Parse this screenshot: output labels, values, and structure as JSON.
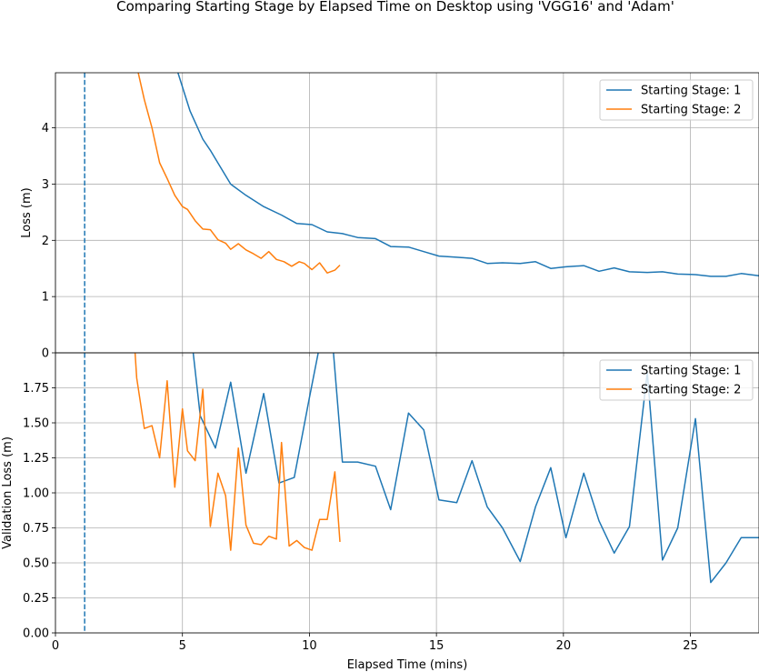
{
  "title": "Comparing Starting Stage by Elapsed Time on Desktop using 'VGG16' and 'Adam'",
  "colors": {
    "stage1": "#1f77b4",
    "stage2": "#ff7f0e",
    "grid": "#b0b0b0",
    "vline": "#1f77b4"
  },
  "chart_data": [
    {
      "type": "line",
      "xlabel": "",
      "ylabel": "Loss (m)",
      "xlim": [
        0,
        27.7
      ],
      "ylim": [
        0,
        4.98
      ],
      "yticks": [
        0,
        1,
        2,
        3,
        4
      ],
      "xticks": [],
      "grid": true,
      "legend": "upper right",
      "vline": 1.15,
      "series": [
        {
          "name": "Starting Stage: 1",
          "x": [
            4.6,
            5.3,
            5.8,
            6.1,
            6.3,
            6.9,
            7.5,
            8.2,
            8.9,
            9.5,
            10.1,
            10.7,
            11.3,
            11.9,
            12.6,
            13.2,
            13.9,
            14.5,
            15.1,
            15.8,
            16.4,
            17.0,
            17.6,
            18.3,
            18.9,
            19.5,
            20.1,
            20.8,
            21.4,
            22.0,
            22.6,
            23.3,
            23.9,
            24.5,
            25.2,
            25.8,
            26.4,
            27.0,
            27.7
          ],
          "y": [
            5.3,
            4.3,
            3.8,
            3.6,
            3.45,
            3.0,
            2.8,
            2.6,
            2.45,
            2.3,
            2.28,
            2.15,
            2.12,
            2.05,
            2.03,
            1.89,
            1.88,
            1.8,
            1.72,
            1.7,
            1.68,
            1.59,
            1.6,
            1.59,
            1.62,
            1.5,
            1.53,
            1.55,
            1.45,
            1.51,
            1.44,
            1.43,
            1.44,
            1.4,
            1.39,
            1.36,
            1.36,
            1.41,
            1.37
          ]
        },
        {
          "name": "Starting Stage: 2",
          "x": [
            3.2,
            3.5,
            3.8,
            4.1,
            4.4,
            4.7,
            5.0,
            5.2,
            5.5,
            5.8,
            6.1,
            6.4,
            6.7,
            6.9,
            7.2,
            7.5,
            7.8,
            8.1,
            8.4,
            8.7,
            9.0,
            9.3,
            9.6,
            9.8,
            10.1,
            10.4,
            10.7,
            11.0,
            11.2
          ],
          "y": [
            5.1,
            4.5,
            4.0,
            3.38,
            3.1,
            2.8,
            2.6,
            2.55,
            2.35,
            2.2,
            2.19,
            2.01,
            1.95,
            1.84,
            1.94,
            1.83,
            1.76,
            1.68,
            1.8,
            1.66,
            1.62,
            1.54,
            1.62,
            1.59,
            1.48,
            1.6,
            1.42,
            1.47,
            1.56
          ]
        }
      ]
    },
    {
      "type": "line",
      "xlabel": "Elapsed Time (mins)",
      "ylabel": "Validation Loss (m)",
      "xlim": [
        0,
        27.7
      ],
      "ylim": [
        0,
        2.0
      ],
      "yticks": [
        0.0,
        0.25,
        0.5,
        0.75,
        1.0,
        1.25,
        1.5,
        1.75
      ],
      "yticklabels": [
        "0.00",
        "0.25",
        "0.50",
        "0.75",
        "1.00",
        "1.25",
        "1.50",
        "1.75"
      ],
      "xticks": [
        0,
        5,
        10,
        15,
        20,
        25
      ],
      "grid": true,
      "legend": "upper right",
      "vline": 1.15,
      "series": [
        {
          "name": "Starting Stage: 1",
          "x": [
            5.3,
            5.7,
            6.3,
            6.9,
            7.5,
            8.2,
            8.8,
            9.4,
            10.0,
            10.4,
            10.9,
            11.3,
            11.9,
            12.6,
            13.2,
            13.9,
            14.5,
            15.1,
            15.8,
            16.4,
            17.0,
            17.6,
            18.3,
            18.9,
            19.5,
            20.1,
            20.8,
            21.4,
            22.0,
            22.6,
            23.3,
            23.9,
            24.5,
            25.2,
            25.8,
            26.4,
            27.0,
            27.7
          ],
          "y": [
            2.2,
            1.55,
            1.32,
            1.79,
            1.14,
            1.71,
            1.07,
            1.11,
            1.68,
            2.05,
            2.1,
            1.22,
            1.22,
            1.19,
            0.88,
            1.57,
            1.45,
            0.95,
            0.93,
            1.23,
            0.9,
            0.75,
            0.51,
            0.9,
            1.18,
            0.68,
            1.14,
            0.8,
            0.57,
            0.76,
            1.86,
            0.52,
            0.75,
            1.53,
            0.36,
            0.5,
            0.68,
            0.68
          ]
        },
        {
          "name": "Starting Stage: 2",
          "x": [
            3.1,
            3.2,
            3.5,
            3.8,
            4.1,
            4.4,
            4.7,
            5.0,
            5.2,
            5.5,
            5.8,
            6.1,
            6.4,
            6.7,
            6.9,
            7.2,
            7.5,
            7.8,
            8.1,
            8.4,
            8.7,
            8.9,
            9.2,
            9.5,
            9.8,
            10.1,
            10.4,
            10.7,
            11.0,
            11.2
          ],
          "y": [
            2.1,
            1.82,
            1.46,
            1.48,
            1.25,
            1.8,
            1.04,
            1.6,
            1.3,
            1.23,
            1.74,
            0.76,
            1.14,
            0.98,
            0.59,
            1.32,
            0.77,
            0.64,
            0.63,
            0.69,
            0.67,
            1.36,
            0.62,
            0.66,
            0.61,
            0.59,
            0.81,
            0.81,
            1.15,
            0.65
          ]
        }
      ]
    }
  ]
}
